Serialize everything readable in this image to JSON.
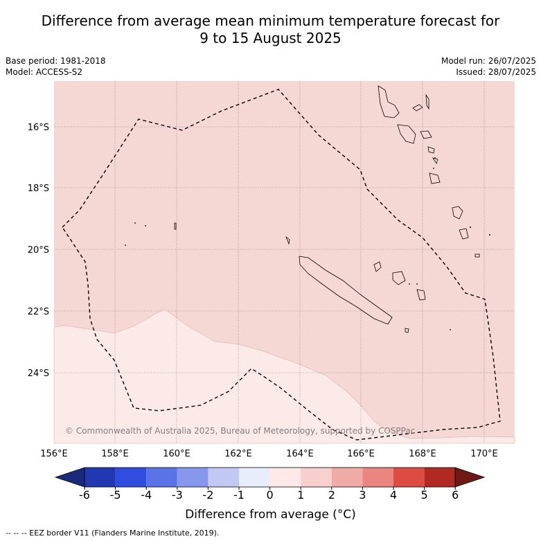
{
  "title_line1": "Difference from average mean minimum temperature forecast for",
  "title_line2": "9 to 15 August 2025",
  "base_period": "Base period: 1981-2018",
  "model": "Model: ACCESS-S2",
  "model_run": "Model run: 26/07/2025",
  "issued": "Issued: 28/07/2025",
  "copyright": "© Commonwealth of Australia 2025, Bureau of Meteorology, supported by COSPPac",
  "lon_ticks": [
    "156°E",
    "158°E",
    "160°E",
    "162°E",
    "164°E",
    "166°E",
    "168°E",
    "170°E"
  ],
  "lat_ticks": [
    "16°S",
    "18°S",
    "20°S",
    "22°S",
    "24°S"
  ],
  "colorbar": {
    "ticks": [
      "-6",
      "-5",
      "-4",
      "-3",
      "-2",
      "-1",
      "0",
      "1",
      "2",
      "3",
      "4",
      "5",
      "6"
    ],
    "colors": [
      "#1a2a7a",
      "#2238b0",
      "#2f4ee0",
      "#5a74e6",
      "#8598ec",
      "#c0c8f4",
      "#e8ecfb",
      "#fde9e7",
      "#f6d0cd",
      "#efaca7",
      "#e8867f",
      "#dd4c40",
      "#b02a22",
      "#6e1a12"
    ],
    "label": "Difference from average (°C)"
  },
  "anomaly_colors": {
    "zero_to_one": "#fbeae8",
    "one_to_two": "#f5d7d4"
  },
  "footnote": "-- -- -- EEZ border V11 (Flanders Marine Institute, 2019)."
}
